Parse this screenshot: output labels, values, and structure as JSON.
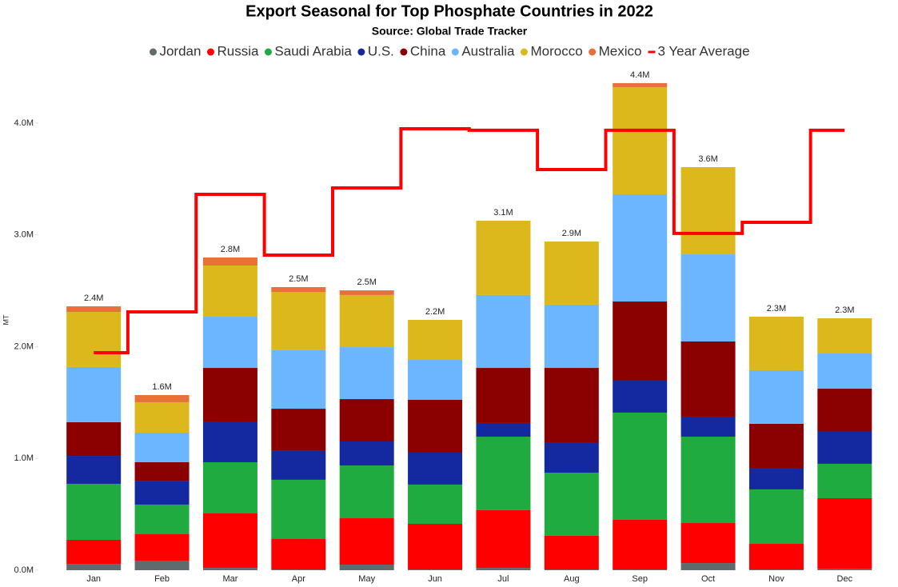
{
  "chart_data": {
    "type": "bar",
    "stacked": true,
    "title": "Export Seasonal for Top Phosphate Countries in 2022",
    "subtitle": "Source: Global Trade Tracker",
    "y_label": "MT",
    "categories": [
      "Jan",
      "Feb",
      "Mar",
      "Apr",
      "May",
      "Jun",
      "Jul",
      "Aug",
      "Sep",
      "Oct",
      "Nov",
      "Dec"
    ],
    "ylim": [
      0,
      4500000
    ],
    "yticks": [
      {
        "value": 0,
        "label": "0.0M"
      },
      {
        "value": 1000000,
        "label": "1.0M"
      },
      {
        "value": 2000000,
        "label": "2.0M"
      },
      {
        "value": 3000000,
        "label": "3.0M"
      },
      {
        "value": 4000000,
        "label": "4.0M"
      }
    ],
    "grid": false,
    "series": [
      {
        "name": "Jordan",
        "color": "#5f6b6d",
        "values": [
          57000,
          86000,
          21000,
          7000,
          50000,
          7000,
          21000,
          7000,
          7000,
          64000,
          7000,
          14000
        ]
      },
      {
        "name": "Russia",
        "color": "#ff0000",
        "values": [
          215000,
          236000,
          487000,
          272000,
          415000,
          408000,
          516000,
          301000,
          444000,
          358000,
          229000,
          630000
        ]
      },
      {
        "name": "Saudi Arabia",
        "color": "#1fab3f",
        "values": [
          501000,
          265000,
          458000,
          530000,
          472000,
          351000,
          658000,
          565000,
          959000,
          773000,
          487000,
          308000
        ]
      },
      {
        "name": "U.S.",
        "color": "#1428a0",
        "values": [
          250000,
          214000,
          365000,
          264000,
          215000,
          286000,
          122000,
          265000,
          286000,
          179000,
          186000,
          293000
        ]
      },
      {
        "name": "China",
        "color": "#8b0000",
        "values": [
          301000,
          165000,
          479000,
          372000,
          379000,
          472000,
          493000,
          672000,
          708000,
          673000,
          401000,
          379000
        ]
      },
      {
        "name": "Australia",
        "color": "#6cb6ff",
        "values": [
          494000,
          265000,
          458000,
          523000,
          465000,
          358000,
          652000,
          566000,
          959000,
          779000,
          479000,
          315000
        ]
      },
      {
        "name": "Morocco",
        "color": "#dcb81c",
        "values": [
          493000,
          272000,
          458000,
          522000,
          466000,
          358000,
          665000,
          565000,
          959000,
          780000,
          479000,
          315000
        ]
      },
      {
        "name": "Mexico",
        "color": "#e8713a",
        "values": [
          50000,
          64000,
          72000,
          43000,
          42000,
          null,
          null,
          null,
          36000,
          null,
          null,
          null
        ]
      },
      {
        "name": "3 Year Average",
        "color": "#ff0000",
        "type": "step-line",
        "values": [
          1946000,
          2311000,
          3363000,
          2819000,
          3420000,
          3950000,
          3936000,
          3585000,
          3936000,
          3013000,
          3113000,
          3936000
        ]
      }
    ],
    "totals": [
      2361000,
      1567000,
      2798000,
      2533000,
      2504000,
      2240000,
      3127000,
      2941000,
      4358000,
      3606000,
      2268000,
      2254000
    ],
    "total_labels": [
      "2.4M",
      "1.6M",
      "2.8M",
      "2.5M",
      "2.5M",
      "2.2M",
      "3.1M",
      "2.9M",
      "4.4M",
      "3.6M",
      "2.3M",
      "2.3M"
    ]
  }
}
